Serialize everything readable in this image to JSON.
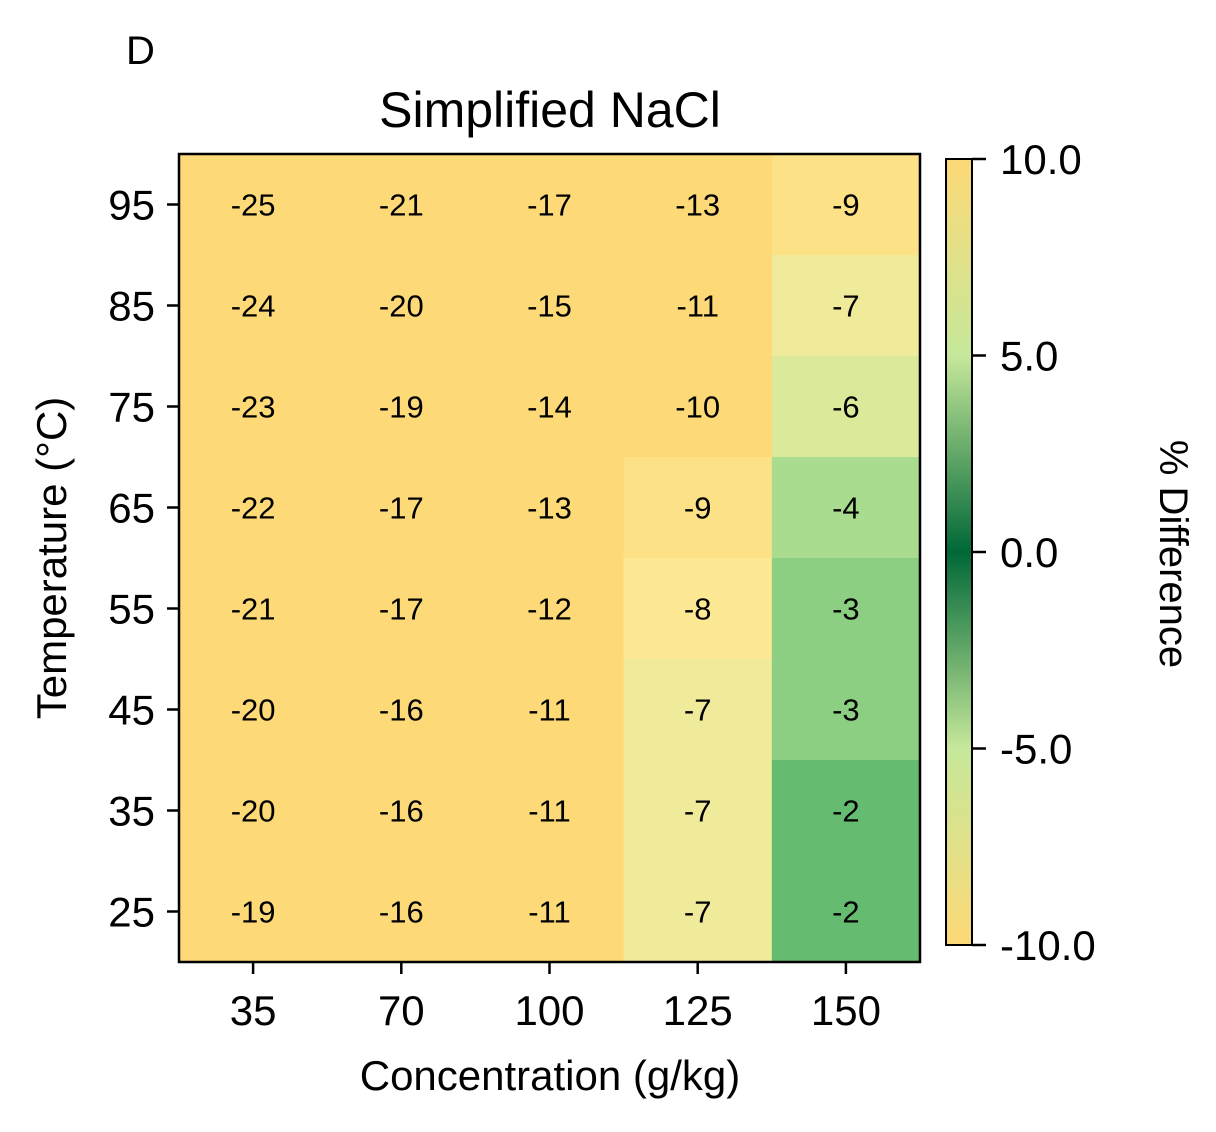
{
  "panel_label": "D",
  "chart_data": {
    "type": "heatmap",
    "title": "Simplified NaCl",
    "xlabel": "Concentration (g/kg)",
    "ylabel": "Temperature (°C)",
    "x_categories": [
      "35",
      "70",
      "100",
      "125",
      "150"
    ],
    "y_categories": [
      "95",
      "85",
      "75",
      "65",
      "55",
      "45",
      "35",
      "25"
    ],
    "values": [
      [
        -25,
        -21,
        -17,
        -13,
        -9
      ],
      [
        -24,
        -20,
        -15,
        -11,
        -7
      ],
      [
        -23,
        -19,
        -14,
        -10,
        -6
      ],
      [
        -22,
        -17,
        -13,
        -9,
        -4
      ],
      [
        -21,
        -17,
        -12,
        -8,
        -3
      ],
      [
        -20,
        -16,
        -11,
        -7,
        -3
      ],
      [
        -20,
        -16,
        -11,
        -7,
        -2
      ],
      [
        -19,
        -16,
        -11,
        -7,
        -2
      ]
    ],
    "colorbar": {
      "label": "% Difference",
      "range": [
        -10,
        10
      ],
      "ticks": [
        "10.0",
        "5.0",
        "0.0",
        "-5.0",
        "-10.0"
      ],
      "colormap": "yellow-green-dark-green-green-yellow"
    }
  }
}
